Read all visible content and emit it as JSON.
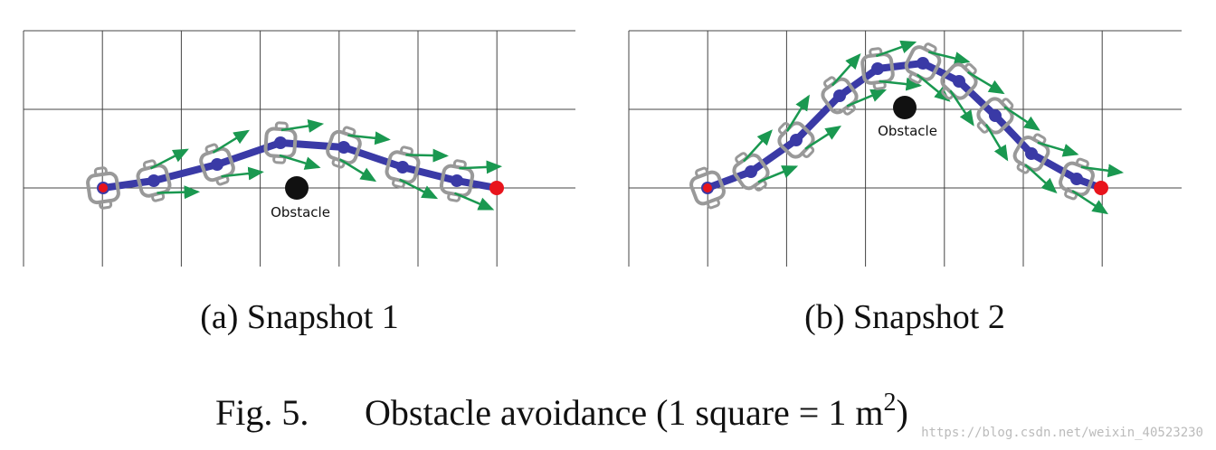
{
  "panels": [
    {
      "obstacle_label": "Obstacle",
      "caption": "(a) Snapshot 1"
    },
    {
      "obstacle_label": "Obstacle",
      "caption": "(b) Snapshot 2"
    }
  ],
  "figure_caption": {
    "label": "Fig. 5.",
    "text": "Obstacle avoidance (1 square = 1 m",
    "superscript": "2",
    "close": ")"
  },
  "watermark": "https://blog.csdn.net/weixin_40523230"
}
